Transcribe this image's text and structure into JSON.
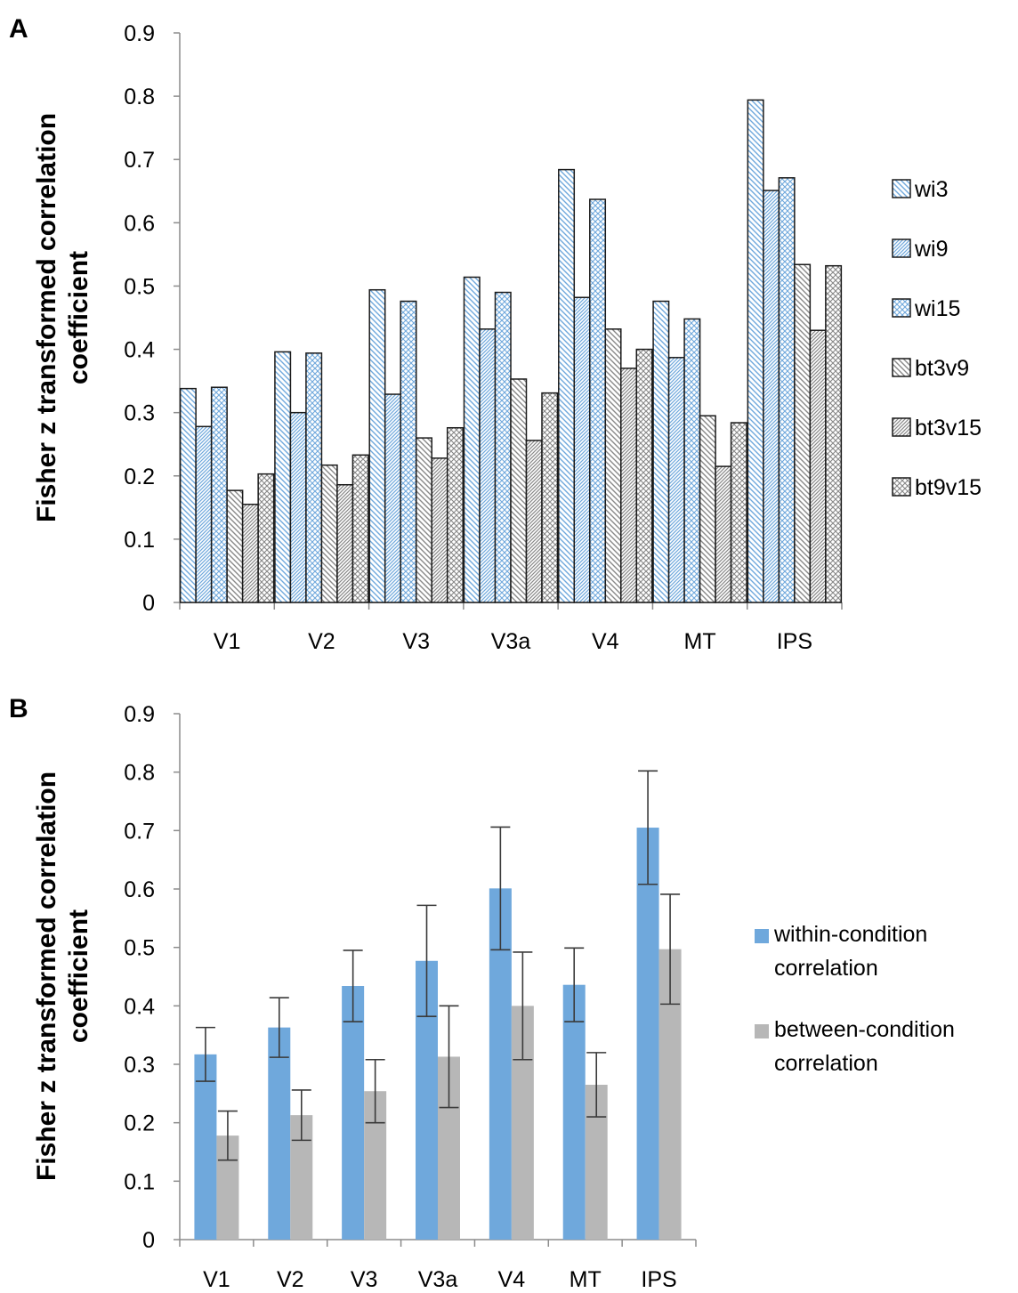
{
  "chart_data": [
    {
      "panel": "A",
      "type": "bar",
      "ylabel_lines": [
        "Fisher z transformed correlation",
        "coefficient"
      ],
      "categories": [
        "V1",
        "V2",
        "V3",
        "V3a",
        "V4",
        "MT",
        "IPS"
      ],
      "ylim": [
        0,
        0.9
      ],
      "yticks": [
        "0",
        "0.1",
        "0.2",
        "0.3",
        "0.4",
        "0.5",
        "0.6",
        "0.7",
        "0.8",
        "0.9"
      ],
      "grid": false,
      "legend_position": "right",
      "series": [
        {
          "name": "wi3",
          "pattern": "diag-blue",
          "values": [
            0.338,
            0.396,
            0.494,
            0.514,
            0.684,
            0.476,
            0.794
          ]
        },
        {
          "name": "wi9",
          "pattern": "dense-blue",
          "values": [
            0.278,
            0.3,
            0.329,
            0.432,
            0.482,
            0.387,
            0.651
          ]
        },
        {
          "name": "wi15",
          "pattern": "cross-blue",
          "values": [
            0.34,
            0.394,
            0.476,
            0.49,
            0.637,
            0.448,
            0.671
          ]
        },
        {
          "name": "bt3v9",
          "pattern": "diag-gray",
          "values": [
            0.177,
            0.217,
            0.26,
            0.353,
            0.432,
            0.295,
            0.534
          ]
        },
        {
          "name": "bt3v15",
          "pattern": "dense-gray",
          "values": [
            0.155,
            0.186,
            0.228,
            0.256,
            0.37,
            0.215,
            0.43
          ]
        },
        {
          "name": "bt9v15",
          "pattern": "cross-gray",
          "values": [
            0.203,
            0.233,
            0.276,
            0.331,
            0.4,
            0.284,
            0.532
          ]
        }
      ]
    },
    {
      "panel": "B",
      "type": "bar",
      "ylabel_lines": [
        "Fisher z transformed correlation",
        "coefficient"
      ],
      "categories": [
        "V1",
        "V2",
        "V3",
        "V3a",
        "V4",
        "MT",
        "IPS"
      ],
      "ylim": [
        0,
        0.9
      ],
      "yticks": [
        "0",
        "0.1",
        "0.2",
        "0.3",
        "0.4",
        "0.5",
        "0.6",
        "0.7",
        "0.8",
        "0.9"
      ],
      "grid": false,
      "legend_position": "right",
      "series": [
        {
          "name_lines": [
            "within-condition",
            "correlation"
          ],
          "color": "#6fa8dc",
          "values": [
            0.317,
            0.363,
            0.434,
            0.477,
            0.601,
            0.436,
            0.705
          ],
          "error": [
            0.046,
            0.051,
            0.061,
            0.095,
            0.105,
            0.063,
            0.097
          ]
        },
        {
          "name_lines": [
            "between-condition",
            "correlation"
          ],
          "color": "#b7b7b7",
          "values": [
            0.178,
            0.213,
            0.254,
            0.313,
            0.4,
            0.265,
            0.497
          ],
          "error": [
            0.042,
            0.043,
            0.054,
            0.087,
            0.092,
            0.055,
            0.094
          ]
        }
      ]
    }
  ]
}
